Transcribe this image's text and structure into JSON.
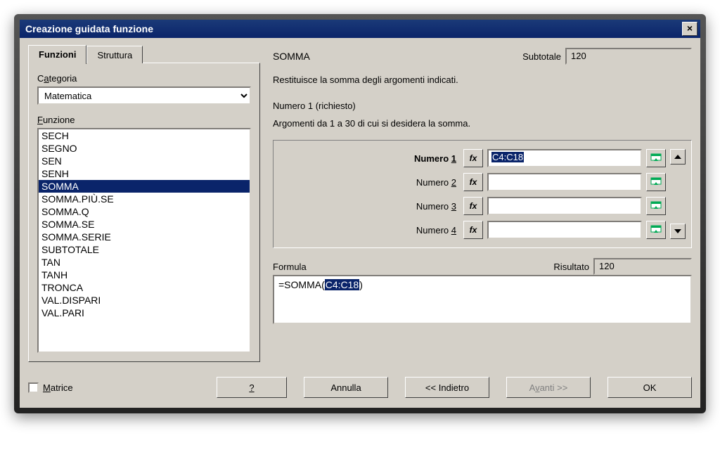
{
  "title": "Creazione guidata funzione",
  "tabs": {
    "functions": "Funzioni",
    "structure": "Struttura"
  },
  "left": {
    "category_label_pre": "C",
    "category_label_u": "a",
    "category_label_post": "tegoria",
    "category_value": "Matematica",
    "function_label_pre": "",
    "function_label_u": "F",
    "function_label_post": "unzione",
    "functions": [
      "SECH",
      "SEGNO",
      "SEN",
      "SENH",
      "SOMMA",
      "SOMMA.PIÙ.SE",
      "SOMMA.Q",
      "SOMMA.SE",
      "SOMMA.SERIE",
      "SUBTOTALE",
      "TAN",
      "TANH",
      "TRONCA",
      "VAL.DISPARI",
      "VAL.PARI"
    ],
    "selected_function": "SOMMA"
  },
  "right": {
    "fn_name": "SOMMA",
    "subtotal_label": "Subtotale",
    "subtotal_value": "120",
    "description": "Restituisce la somma degli argomenti indicati.",
    "arg_title": "Numero 1 (richiesto)",
    "arg_desc": "Argomenti da 1 a 30 di cui si desidera la somma.",
    "args": [
      {
        "label_pre": "Numero ",
        "label_u": "1",
        "label_post": "",
        "bold": true,
        "value": "C4:C18",
        "highlight": true
      },
      {
        "label_pre": "Numero ",
        "label_u": "2",
        "label_post": "",
        "bold": false,
        "value": "",
        "highlight": false
      },
      {
        "label_pre": "Numero ",
        "label_u": "3",
        "label_post": "",
        "bold": false,
        "value": "",
        "highlight": false
      },
      {
        "label_pre": "Numero ",
        "label_u": "4",
        "label_post": "",
        "bold": false,
        "value": "",
        "highlight": false
      }
    ],
    "fx_label": "fx",
    "formula_label": "Formula",
    "result_label": "Risultato",
    "result_value": "120",
    "formula_pre": "=SOMMA(",
    "formula_hl": "C4:C18",
    "formula_post": ")"
  },
  "footer": {
    "matrice_pre": "",
    "matrice_u": "M",
    "matrice_post": "atrice",
    "help_pre": "",
    "help_u": "?",
    "help_post": "",
    "cancel": "Annulla",
    "back": "<< Indietro",
    "next_pre": "A",
    "next_u": "v",
    "next_post": "anti >>",
    "ok": "OK"
  }
}
